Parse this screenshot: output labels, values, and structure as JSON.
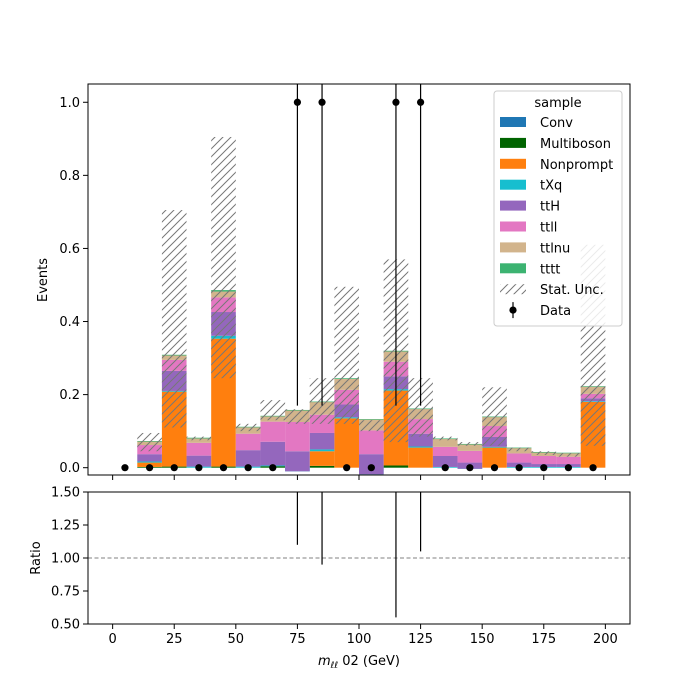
{
  "chart_data": {
    "type": "bar",
    "stacked": true,
    "x_bin_edges": [
      0,
      10,
      20,
      30,
      40,
      50,
      60,
      70,
      80,
      90,
      100,
      110,
      120,
      130,
      140,
      150,
      160,
      170,
      180,
      190,
      200
    ],
    "xlabel_main": "m",
    "xlabel_sub": "ℓℓ",
    "xlabel_rest": " 02 (GeV)",
    "ylabel": "Events",
    "ratio_ylabel": "Ratio",
    "xlim": [
      -10,
      210
    ],
    "ylim": [
      -0.02,
      1.05
    ],
    "ratio_ylim": [
      0.5,
      1.5
    ],
    "x_ticks": [
      0,
      25,
      50,
      75,
      100,
      125,
      150,
      175,
      200
    ],
    "y_ticks": [
      0.0,
      0.2,
      0.4,
      0.6,
      0.8,
      1.0
    ],
    "ratio_y_ticks": [
      0.5,
      0.75,
      1.0,
      1.25,
      1.5
    ],
    "legend_title": "sample",
    "legend_position": "top-right",
    "series": [
      {
        "name": "Conv",
        "color": "#1f77b4",
        "values": [
          0,
          0,
          0,
          0,
          0,
          0,
          0,
          0,
          0,
          0,
          0,
          0,
          0,
          0,
          0,
          0,
          0,
          0,
          0,
          0
        ]
      },
      {
        "name": "Multiboson",
        "color": "#006400",
        "values": [
          0,
          0.002,
          0.003,
          0,
          0.003,
          0,
          0.004,
          0,
          0.005,
          0,
          0.002,
          0.006,
          0,
          0,
          0,
          0,
          0,
          0,
          0,
          0
        ]
      },
      {
        "name": "Nonprompt",
        "color": "#ff7f0e",
        "values": [
          0,
          0.012,
          0.205,
          0,
          0.35,
          0,
          0,
          0,
          0.04,
          0.135,
          0,
          0.205,
          0.055,
          0,
          0,
          0.055,
          0,
          0,
          0,
          0.18
        ]
      },
      {
        "name": "tXq",
        "color": "#17becf",
        "values": [
          0,
          0.003,
          0.002,
          0.003,
          0.008,
          0.003,
          0.002,
          -0.01,
          0.005,
          0.003,
          -0.02,
          0.004,
          0.003,
          0.002,
          -0.003,
          0.002,
          0.002,
          0.002,
          0.002,
          0.002
        ]
      },
      {
        "name": "ttH",
        "color": "#9467bd",
        "values": [
          0,
          0.02,
          0.055,
          0.03,
          0.065,
          0.045,
          0.065,
          0.055,
          0.045,
          0.035,
          0.055,
          0.035,
          0.035,
          0.03,
          0.017,
          0.027,
          0.012,
          0.008,
          0.008,
          0.008
        ]
      },
      {
        "name": "ttll",
        "color": "#e377c2",
        "values": [
          0,
          0.025,
          0.03,
          0.035,
          0.04,
          0.045,
          0.055,
          0.08,
          0.05,
          0.04,
          0.065,
          0.04,
          0.04,
          0.025,
          0.032,
          0.03,
          0.025,
          0.022,
          0.02,
          0.012
        ]
      },
      {
        "name": "ttlnu",
        "color": "#d2b48c",
        "values": [
          0,
          0.01,
          0.012,
          0.012,
          0.016,
          0.018,
          0.015,
          0.032,
          0.035,
          0.03,
          0.03,
          0.028,
          0.028,
          0.022,
          0.018,
          0.025,
          0.015,
          0.01,
          0.01,
          0.02
        ]
      },
      {
        "name": "tttt",
        "color": "#3cb371",
        "values": [
          0,
          0.001,
          0.002,
          0.002,
          0.004,
          0.001,
          0.001,
          0.001,
          0.001,
          0.002,
          0.001,
          0.002,
          0.001,
          0.001,
          0.001,
          0.001,
          0.001,
          0.001,
          0.001,
          0.001
        ]
      }
    ],
    "stat_unc": {
      "name": "Stat. Unc.",
      "up": [
        0,
        0.095,
        0.705,
        0.085,
        0.905,
        0.12,
        0.185,
        0.16,
        0.245,
        0.495,
        0.13,
        0.57,
        0.245,
        0.085,
        0.07,
        0.22,
        0.055,
        0.045,
        0.04,
        0.61
      ],
      "down": [
        0,
        0.045,
        0.11,
        0.075,
        0.245,
        0.1,
        0.13,
        0.12,
        0.12,
        0.12,
        0.1,
        0.07,
        0.085,
        0.075,
        0.06,
        0.06,
        0.045,
        0.035,
        0.03,
        0.06
      ]
    },
    "data_series": {
      "name": "Data",
      "x": [
        5,
        15,
        25,
        35,
        45,
        55,
        65,
        75,
        85,
        95,
        105,
        115,
        125,
        135,
        145,
        155,
        165,
        175,
        185,
        195
      ],
      "y": [
        0,
        0,
        0,
        0,
        0,
        0,
        0,
        1,
        1,
        0,
        0,
        1,
        1,
        0,
        0,
        0,
        0,
        0,
        0,
        0
      ],
      "err_low": [
        0,
        0,
        0,
        0,
        0,
        0,
        0,
        0.83,
        0.83,
        0,
        0,
        0.83,
        0.83,
        0,
        0,
        0,
        0,
        0,
        0,
        0
      ],
      "err_high": [
        0,
        0,
        0,
        0,
        0,
        0,
        0,
        1.3,
        1.3,
        0,
        0,
        1.3,
        1.3,
        0,
        0,
        0,
        0,
        0,
        0,
        0
      ]
    },
    "ratio": {
      "x": [
        75,
        85,
        115,
        125
      ],
      "line_low": [
        1.1,
        0.95,
        0.55,
        1.05
      ],
      "line_high": [
        1.55,
        1.55,
        1.55,
        1.55
      ],
      "reference_line": 1.0
    }
  }
}
